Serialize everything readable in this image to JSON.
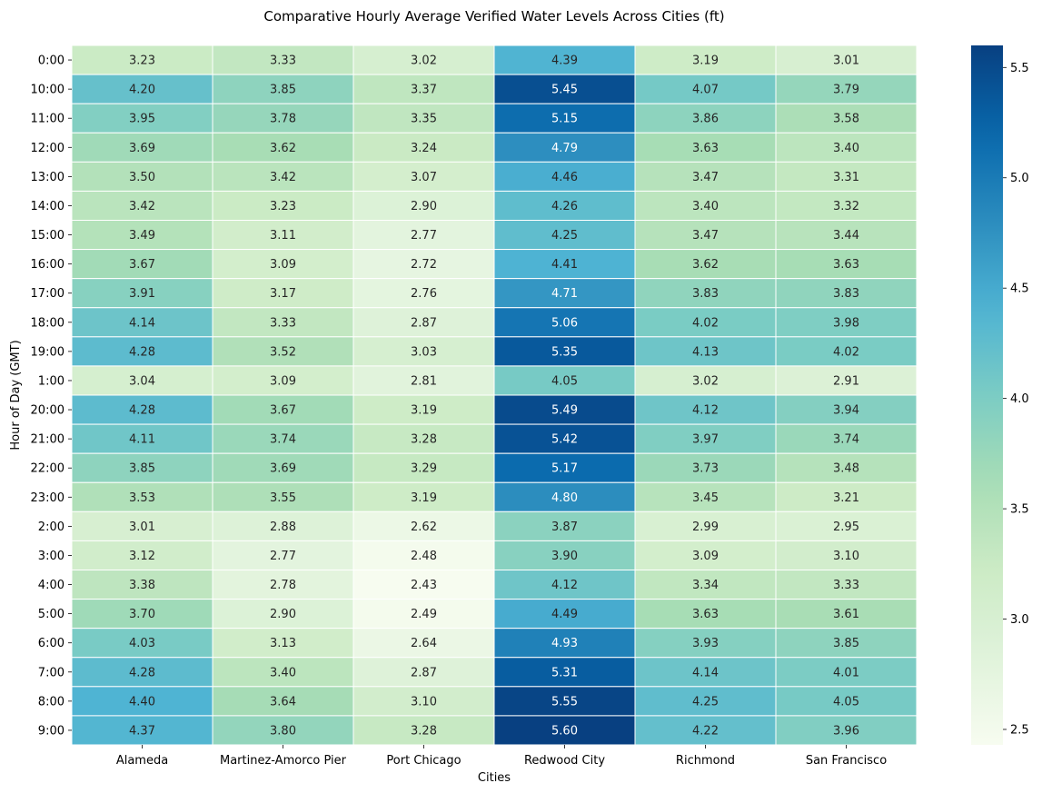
{
  "chart_data": {
    "type": "heatmap",
    "title": "Comparative Hourly Average Verified Water Levels Across Cities (ft)",
    "xlabel": "Cities",
    "ylabel": "Hour of Day (GMT)",
    "columns": [
      "Alameda",
      "Martinez-Amorco Pier",
      "Port Chicago",
      "Redwood City",
      "Richmond",
      "San Francisco"
    ],
    "rows": [
      "0:00",
      "10:00",
      "11:00",
      "12:00",
      "13:00",
      "14:00",
      "15:00",
      "16:00",
      "17:00",
      "18:00",
      "19:00",
      "1:00",
      "20:00",
      "21:00",
      "22:00",
      "23:00",
      "2:00",
      "3:00",
      "4:00",
      "5:00",
      "6:00",
      "7:00",
      "8:00",
      "9:00"
    ],
    "values": [
      [
        3.23,
        3.33,
        3.02,
        4.39,
        3.19,
        3.01
      ],
      [
        4.2,
        3.85,
        3.37,
        5.45,
        4.07,
        3.79
      ],
      [
        3.95,
        3.78,
        3.35,
        5.15,
        3.86,
        3.58
      ],
      [
        3.69,
        3.62,
        3.24,
        4.79,
        3.63,
        3.4
      ],
      [
        3.5,
        3.42,
        3.07,
        4.46,
        3.47,
        3.31
      ],
      [
        3.42,
        3.23,
        2.9,
        4.26,
        3.4,
        3.32
      ],
      [
        3.49,
        3.11,
        2.77,
        4.25,
        3.47,
        3.44
      ],
      [
        3.67,
        3.09,
        2.72,
        4.41,
        3.62,
        3.63
      ],
      [
        3.91,
        3.17,
        2.76,
        4.71,
        3.83,
        3.83
      ],
      [
        4.14,
        3.33,
        2.87,
        5.06,
        4.02,
        3.98
      ],
      [
        4.28,
        3.52,
        3.03,
        5.35,
        4.13,
        4.02
      ],
      [
        3.04,
        3.09,
        2.81,
        4.05,
        3.02,
        2.91
      ],
      [
        4.28,
        3.67,
        3.19,
        5.49,
        4.12,
        3.94
      ],
      [
        4.11,
        3.74,
        3.28,
        5.42,
        3.97,
        3.74
      ],
      [
        3.85,
        3.69,
        3.29,
        5.17,
        3.73,
        3.48
      ],
      [
        3.53,
        3.55,
        3.19,
        4.8,
        3.45,
        3.21
      ],
      [
        3.01,
        2.88,
        2.62,
        3.87,
        2.99,
        2.95
      ],
      [
        3.12,
        2.77,
        2.48,
        3.9,
        3.09,
        3.1
      ],
      [
        3.38,
        2.78,
        2.43,
        4.12,
        3.34,
        3.33
      ],
      [
        3.7,
        2.9,
        2.49,
        4.49,
        3.63,
        3.61
      ],
      [
        4.03,
        3.13,
        2.64,
        4.93,
        3.93,
        3.85
      ],
      [
        4.28,
        3.4,
        2.87,
        5.31,
        4.14,
        4.01
      ],
      [
        4.4,
        3.64,
        3.1,
        5.55,
        4.25,
        4.05
      ],
      [
        4.37,
        3.8,
        3.28,
        5.6,
        4.22,
        3.96
      ]
    ],
    "vmin": 2.43,
    "vmax": 5.6,
    "colormap": "GnBu",
    "colorbar": {
      "ticks": [
        2.5,
        3.0,
        3.5,
        4.0,
        4.5,
        5.0,
        5.5
      ],
      "tick_labels": [
        "2.5",
        "3.0",
        "3.5",
        "4.0",
        "4.5",
        "5.0",
        "5.5"
      ],
      "placement": "right"
    },
    "cell_border_color": "#ffffff",
    "annotation_dark_text": "#262626",
    "annotation_light_text": "#ffffff"
  }
}
